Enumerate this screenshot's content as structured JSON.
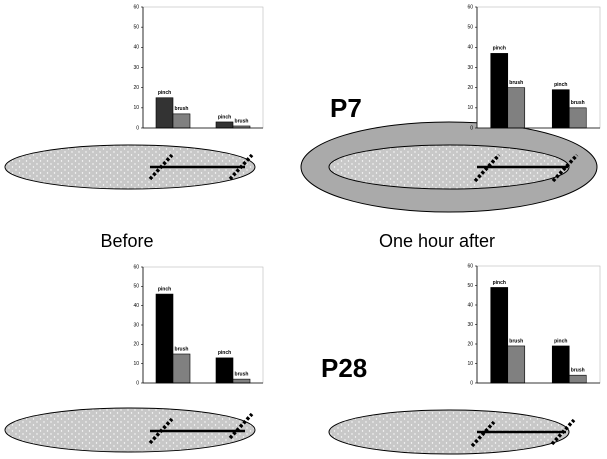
{
  "chart_data": [
    {
      "type": "bar",
      "categories": [
        null,
        null
      ],
      "ylim": [
        0,
        60
      ],
      "yticks": [
        0,
        10,
        20,
        30,
        40,
        50,
        60
      ],
      "grid": false,
      "series": [
        {
          "name": "pinch",
          "color": "#333333",
          "values": [
            15,
            3
          ]
        },
        {
          "name": "brush",
          "color": "#808080",
          "values": [
            7,
            1
          ]
        }
      ]
    },
    {
      "type": "bar",
      "categories": [
        null,
        null
      ],
      "ylim": [
        0,
        60
      ],
      "yticks": [
        0,
        10,
        20,
        30,
        40,
        50,
        60
      ],
      "grid": false,
      "series": [
        {
          "name": "pinch",
          "color": "#000000",
          "values": [
            37,
            19
          ]
        },
        {
          "name": "brush",
          "color": "#808080",
          "values": [
            20,
            10
          ]
        }
      ]
    },
    {
      "type": "bar",
      "categories": [
        null,
        null
      ],
      "ylim": [
        0,
        60
      ],
      "yticks": [
        0,
        10,
        20,
        30,
        40,
        50,
        60
      ],
      "grid": false,
      "series": [
        {
          "name": "pinch",
          "color": "#000000",
          "values": [
            46,
            13
          ]
        },
        {
          "name": "brush",
          "color": "#808080",
          "values": [
            15,
            2
          ]
        }
      ]
    },
    {
      "type": "bar",
      "categories": [
        null,
        null
      ],
      "ylim": [
        0,
        60
      ],
      "yticks": [
        0,
        10,
        20,
        30,
        40,
        50,
        60
      ],
      "grid": false,
      "series": [
        {
          "name": "pinch",
          "color": "#000000",
          "values": [
            49,
            19
          ]
        },
        {
          "name": "brush",
          "color": "#808080",
          "values": [
            19,
            4
          ]
        }
      ]
    }
  ],
  "column_labels": [
    "Before",
    "One hour after"
  ],
  "row_labels": [
    "P7",
    "P28"
  ]
}
